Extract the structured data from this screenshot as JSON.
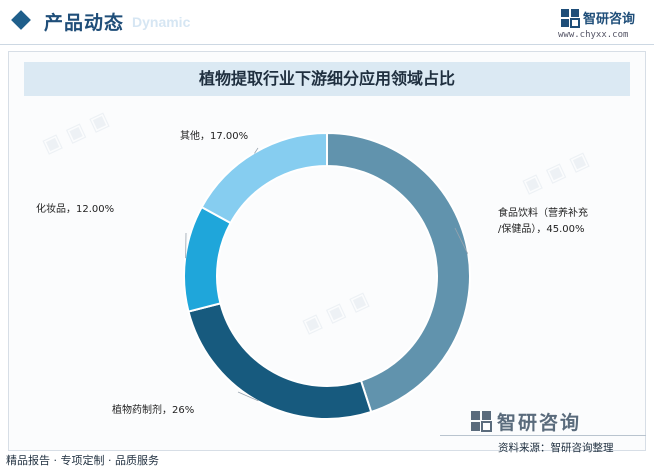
{
  "header": {
    "section_title": "产品动态",
    "section_sub": "Dynamic",
    "brand_name": "智研咨询",
    "brand_url": "www.chyxx.com"
  },
  "footer": {
    "tagline": "精品报告 · 专项定制 · 品质服务",
    "source_brand": "智研咨询",
    "source_text": "资料来源：智研咨询整理"
  },
  "chart_data": {
    "type": "pie",
    "variant": "donut",
    "title": "植物提取行业下游细分应用领域占比",
    "slices": [
      {
        "label": "食品饮料（营养补充/保健品）",
        "label_lines": [
          "食品饮料（营养补充",
          "/保健品），45.00%"
        ],
        "value": 45.0,
        "display": "45.00%",
        "color": "#6193ad"
      },
      {
        "label": "植物药制剂",
        "label_lines": [
          "植物药制剂，26%"
        ],
        "value": 26.0,
        "display": "26%",
        "color": "#175a7e"
      },
      {
        "label": "化妆品",
        "label_lines": [
          "化妆品，12.00%"
        ],
        "value": 12.0,
        "display": "12.00%",
        "color": "#1fa6da"
      },
      {
        "label": "其他",
        "label_lines": [
          "其他，17.00%"
        ],
        "value": 17.0,
        "display": "17.00%",
        "color": "#86cdf0"
      }
    ]
  }
}
